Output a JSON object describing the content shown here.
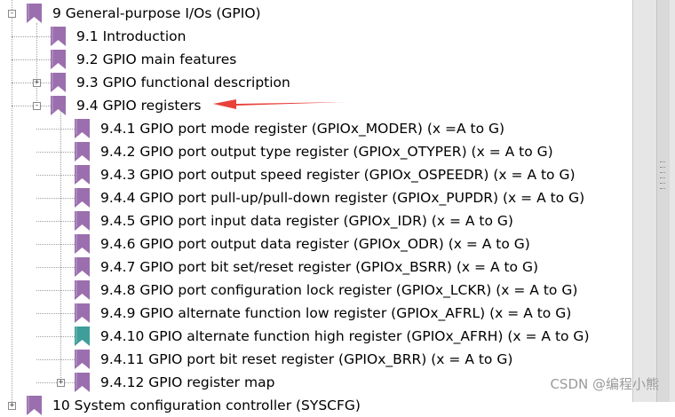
{
  "tree": {
    "items": [
      {
        "id": "sec9",
        "label": "9 General-purpose I/Os (GPIO)",
        "level": 0,
        "toggle": "-",
        "bookmark": "purple"
      },
      {
        "id": "s9_1",
        "label": "9.1 Introduction",
        "level": 1,
        "toggle": "",
        "bookmark": "purple"
      },
      {
        "id": "s9_2",
        "label": "9.2 GPIO main features",
        "level": 1,
        "toggle": "",
        "bookmark": "purple"
      },
      {
        "id": "s9_3",
        "label": "9.3 GPIO functional description",
        "level": 1,
        "toggle": "+",
        "bookmark": "purple"
      },
      {
        "id": "s9_4",
        "label": "9.4 GPIO registers",
        "level": 1,
        "toggle": "-",
        "bookmark": "purple"
      },
      {
        "id": "s9_4_1",
        "label": "9.4.1 GPIO port mode register (GPIOx_MODER) (x =A to G)",
        "level": 2,
        "toggle": "",
        "bookmark": "purple"
      },
      {
        "id": "s9_4_2",
        "label": "9.4.2 GPIO port output type register (GPIOx_OTYPER) (x = A to G)",
        "level": 2,
        "toggle": "",
        "bookmark": "purple"
      },
      {
        "id": "s9_4_3",
        "label": "9.4.3 GPIO port output speed register (GPIOx_OSPEEDR) (x = A to G)",
        "level": 2,
        "toggle": "",
        "bookmark": "purple"
      },
      {
        "id": "s9_4_4",
        "label": "9.4.4 GPIO port pull-up/pull-down register (GPIOx_PUPDR) (x = A to G)",
        "level": 2,
        "toggle": "",
        "bookmark": "purple"
      },
      {
        "id": "s9_4_5",
        "label": "9.4.5 GPIO port input data register (GPIOx_IDR) (x = A to G)",
        "level": 2,
        "toggle": "",
        "bookmark": "purple"
      },
      {
        "id": "s9_4_6",
        "label": "9.4.6 GPIO port output data register (GPIOx_ODR) (x = A to G)",
        "level": 2,
        "toggle": "",
        "bookmark": "purple"
      },
      {
        "id": "s9_4_7",
        "label": "9.4.7 GPIO port bit set/reset register (GPIOx_BSRR) (x = A to G)",
        "level": 2,
        "toggle": "",
        "bookmark": "purple"
      },
      {
        "id": "s9_4_8",
        "label": "9.4.8 GPIO port configuration lock register (GPIOx_LCKR) (x = A to G)",
        "level": 2,
        "toggle": "",
        "bookmark": "purple"
      },
      {
        "id": "s9_4_9",
        "label": "9.4.9 GPIO alternate function low register (GPIOx_AFRL) (x = A to G)",
        "level": 2,
        "toggle": "",
        "bookmark": "purple"
      },
      {
        "id": "s9_4_10",
        "label": "9.4.10 GPIO alternate function high register (GPIOx_AFRH) (x = A to G)",
        "level": 2,
        "toggle": "",
        "bookmark": "teal"
      },
      {
        "id": "s9_4_11",
        "label": "9.4.11 GPIO port bit reset register (GPIOx_BRR) (x = A to G)",
        "level": 2,
        "toggle": "",
        "bookmark": "purple"
      },
      {
        "id": "s9_4_12",
        "label": "9.4.12 GPIO register map",
        "level": 2,
        "toggle": "+",
        "bookmark": "purple"
      },
      {
        "id": "sec10",
        "label": "10 System configuration controller (SYSCFG)",
        "level": 0,
        "toggle": "+",
        "bookmark": "purple"
      }
    ]
  },
  "watermark": "CSDN @编程小熊",
  "colors": {
    "bookmark_purple": "#9b6fae",
    "bookmark_teal": "#3f9e9a",
    "arrow_red": "#e8413a"
  },
  "icons": {
    "bookmark": "bookmark-icon",
    "expand": "plus-box-icon",
    "collapse": "minus-box-icon",
    "annotation": "red-arrow-icon"
  }
}
